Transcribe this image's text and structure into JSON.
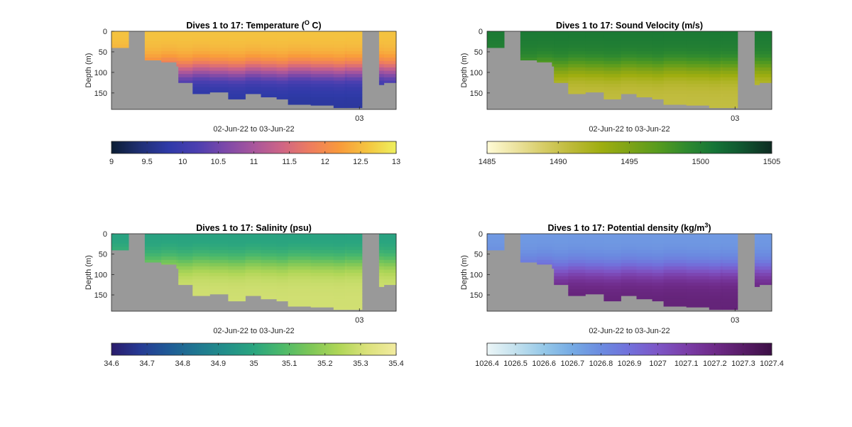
{
  "figure": {
    "background": "#ffffff",
    "axes_background": "#999999"
  },
  "chart_data": [
    {
      "id": "temperature",
      "type": "heatmap",
      "title": "Dives 1 to 17: Temperature (",
      "title_sup": "O",
      "title_tail": " C)",
      "xlabel": "02-Jun-22 to 03-Jun-22",
      "ylabel": "Depth (m)",
      "ylim": [
        0,
        190
      ],
      "yticks": [
        0,
        50,
        100,
        150
      ],
      "xtick_label": "03",
      "colormap": [
        "#0b1d33",
        "#1f2f73",
        "#2f3aa8",
        "#4b3fb0",
        "#7d49a9",
        "#a8569c",
        "#cf6585",
        "#ee7d5e",
        "#f99a3b",
        "#f4c540",
        "#eef05e"
      ],
      "colorbar_ticks": [
        "9",
        "9.5",
        "10",
        "10.5",
        "11",
        "11.5",
        "12",
        "12.5",
        "13"
      ],
      "clim": [
        9,
        13
      ],
      "profile": {
        "surface": 12.6,
        "deep": 9.7,
        "transition": 95
      }
    },
    {
      "id": "sound-velocity",
      "type": "heatmap",
      "title": "Dives 1 to 17: Sound Velocity (m/s)",
      "title_sup": "",
      "title_tail": "",
      "xlabel": "02-Jun-22 to 03-Jun-22",
      "ylabel": "Depth (m)",
      "ylim": [
        0,
        190
      ],
      "yticks": [
        0,
        50,
        100,
        150
      ],
      "xtick_label": "03",
      "colormap": [
        "#fffbd6",
        "#ece3a0",
        "#d6cc66",
        "#bcb937",
        "#9fae10",
        "#7ea317",
        "#579b1e",
        "#2f8a2f",
        "#157437",
        "#10542f",
        "#0e2a22"
      ],
      "colorbar_ticks": [
        "1485",
        "1490",
        "1495",
        "1500",
        "1505"
      ],
      "clim": [
        1485,
        1505
      ],
      "profile": {
        "surface": 1500.5,
        "deep": 1490.5,
        "transition": 90
      }
    },
    {
      "id": "salinity",
      "type": "heatmap",
      "title": "Dives 1 to 17: Salinity (psu)",
      "title_sup": "",
      "title_tail": "",
      "xlabel": "02-Jun-22 to 03-Jun-22",
      "ylabel": "Depth (m)",
      "ylim": [
        0,
        190
      ],
      "yticks": [
        0,
        50,
        100,
        150
      ],
      "xtick_label": "03",
      "colormap": [
        "#2a1c6b",
        "#263a94",
        "#1f5a96",
        "#1f7791",
        "#228f8a",
        "#2aa57f",
        "#4cb96a",
        "#7ec757",
        "#b0d657",
        "#dce27c",
        "#f2eba0"
      ],
      "colorbar_ticks": [
        "34.6",
        "34.7",
        "34.8",
        "34.9",
        "35",
        "35.1",
        "35.2",
        "35.3",
        "35.4"
      ],
      "clim": [
        34.6,
        35.4
      ],
      "profile": {
        "surface": 34.98,
        "deep": 35.3,
        "transition": 70
      }
    },
    {
      "id": "potential-density",
      "type": "heatmap",
      "title": "Dives 1 to 17: Potential density (kg/m",
      "title_sup": "3",
      "title_tail": ")",
      "xlabel": "02-Jun-22 to 03-Jun-22",
      "ylabel": "Depth (m)",
      "ylim": [
        0,
        190
      ],
      "yticks": [
        0,
        50,
        100,
        150
      ],
      "xtick_label": "03",
      "colormap": [
        "#ecf6f7",
        "#c3e1ee",
        "#95c8e8",
        "#75aae4",
        "#6b8be0",
        "#7270db",
        "#7d56c6",
        "#7b3ea8",
        "#6e2a88",
        "#581c67",
        "#3c0f45"
      ],
      "colorbar_ticks": [
        "1026.4",
        "1026.5",
        "1026.6",
        "1026.7",
        "1026.8",
        "1026.9",
        "1027",
        "1027.1",
        "1027.2",
        "1027.3",
        "1027.4"
      ],
      "clim": [
        1026.4,
        1027.4
      ],
      "profile": {
        "surface": 1026.75,
        "deep": 1027.25,
        "transition": 90
      }
    }
  ]
}
